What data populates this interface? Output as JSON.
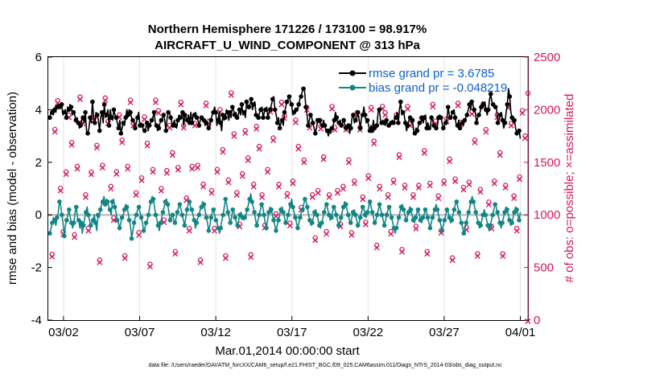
{
  "chart_data": {
    "type": "line",
    "title": "Northern Hemisphere 171226 / 173100 = 98.917%",
    "subtitle": "AIRCRAFT_U_WIND_COMPONENT @ 313 hPa",
    "xlabel": "Mar.01,2014 00:00:00 start",
    "ylabel": "rmse and bias (model - observation)",
    "y2label": "# of obs: o=possible; ×=assimilated",
    "ylim": [
      -4,
      6
    ],
    "y2lim": [
      0,
      2500
    ],
    "xlim": [
      0,
      31.5
    ],
    "x_tick_positions": [
      1,
      6,
      11,
      16,
      21,
      26,
      31
    ],
    "x_tick_labels": [
      "03/02",
      "03/07",
      "03/12",
      "03/17",
      "03/22",
      "03/27",
      "04/01"
    ],
    "y_ticks": [
      -4,
      -2,
      0,
      2,
      4,
      6
    ],
    "y2_ticks": [
      0,
      500,
      1000,
      1500,
      2000,
      2500
    ],
    "grid": "vertical",
    "legend_position": "top-right",
    "series": [
      {
        "name": "rmse grand pr = 3.6785",
        "color": "#000000",
        "values": [
          3.7,
          3.9,
          3.9,
          3.8,
          4.0,
          3.9,
          4.1,
          4.2,
          4.1,
          4.2,
          4.2,
          3.8,
          3.9,
          4.0,
          3.7,
          4.1,
          4.0,
          4.2,
          4.1,
          3.8,
          3.9,
          3.8,
          3.6,
          3.7,
          3.5,
          3.3,
          3.4,
          3.6,
          3.7,
          3.5,
          3.9,
          3.2,
          3.1,
          3.3,
          3.7,
          3.5,
          4.3,
          3.7,
          3.5,
          3.9,
          3.8,
          3.6,
          3.2,
          3.7,
          3.9,
          3.5,
          4.2,
          3.7,
          3.8,
          4.0,
          3.4,
          4.0,
          3.7,
          3.6,
          4.0,
          3.8,
          3.7,
          3.5,
          3.3,
          3.6,
          3.1,
          3.3,
          3.5,
          3.4,
          3.7,
          4.0,
          3.8,
          4.0,
          3.9,
          3.7,
          3.6,
          3.5,
          3.3,
          3.5,
          3.7,
          3.9,
          3.4,
          3.5,
          3.4,
          3.2,
          3.2,
          3.3,
          3.5,
          3.2,
          3.4,
          3.5,
          3.6,
          3.7,
          3.9,
          3.5,
          3.4,
          3.2,
          3.3,
          3.5,
          3.6,
          3.7,
          3.8,
          3.6,
          3.2,
          3.7,
          3.9,
          3.9,
          3.7,
          3.5,
          3.4,
          3.6,
          3.4,
          3.3,
          3.6,
          3.8,
          3.7,
          3.8,
          3.9,
          3.4,
          3.8,
          3.7,
          3.6,
          3.8,
          3.5,
          3.9,
          3.5,
          3.8,
          3.8,
          3.9,
          3.7,
          3.6,
          3.4,
          3.6,
          3.7,
          3.7,
          3.6,
          3.4,
          3.5,
          3.5,
          3.3,
          3.4,
          3.6,
          3.8,
          3.9,
          4.1,
          3.9,
          3.4,
          3.6,
          3.9,
          3.5,
          3.2,
          3.8,
          3.6,
          3.7,
          4.0,
          3.9,
          3.6,
          3.9,
          3.7,
          4.1,
          4.0,
          3.8,
          3.9,
          3.7,
          3.8,
          4.0,
          3.8,
          4.2,
          3.8,
          3.9,
          3.7,
          4.3,
          4.2,
          4.1,
          4.2,
          4.4,
          4.0,
          4.2,
          4.3,
          3.8,
          3.8,
          3.7,
          3.9,
          4.0,
          4.1,
          3.7,
          3.9,
          4.0,
          4.1,
          3.7,
          3.9,
          4.0,
          4.2,
          4.4,
          4.5,
          4.0,
          3.8,
          3.5,
          3.7,
          3.3,
          3.5,
          3.6,
          3.4,
          3.9,
          4.1,
          4.3,
          4.4,
          4.5,
          4.3,
          4.2,
          3.8,
          3.9,
          3.9,
          4.0,
          4.0,
          4.2,
          4.4,
          4.5,
          4.7,
          4.8,
          4.7,
          4.1,
          3.8,
          3.4,
          3.6,
          3.8,
          3.7,
          3.5,
          3.3,
          3.1,
          3.3,
          3.6,
          3.5,
          3.6,
          3.4,
          3.4,
          3.6,
          3.4,
          3.2,
          3.2,
          3.0,
          3.2,
          3.1,
          3.3,
          3.4,
          3.6,
          3.9,
          3.7,
          3.5,
          3.5,
          3.6,
          3.4,
          3.5,
          3.6,
          3.4,
          3.3,
          3.3,
          3.4,
          3.1,
          3.3,
          3.7,
          3.8,
          3.5,
          3.6,
          3.7,
          3.9,
          3.6,
          3.3,
          3.7,
          3.8,
          4.1,
          3.8,
          3.5,
          3.6,
          3.4,
          3.2,
          3.4,
          3.2,
          3.6,
          3.3,
          3.4,
          3.4,
          3.9,
          4.0,
          3.6,
          3.5,
          3.6,
          3.5,
          3.4,
          3.6,
          3.4,
          3.4,
          3.5,
          3.5,
          3.6,
          3.5,
          3.6,
          3.7,
          3.9,
          3.5,
          4.0,
          4.3,
          3.8,
          3.9,
          3.8,
          3.5,
          3.2,
          3.4,
          3.6,
          3.7,
          3.5,
          3.6,
          3.2,
          3.1,
          3.3,
          3.2,
          3.4,
          3.5,
          3.5,
          3.7,
          3.5,
          3.7,
          3.8,
          3.3,
          3.5,
          3.3,
          3.3,
          3.7,
          3.6,
          3.4,
          3.3,
          3.3,
          3.4,
          3.7,
          3.8,
          3.7,
          3.5,
          3.3,
          3.4,
          3.5,
          3.6,
          4.1,
          3.8,
          3.7,
          3.8,
          3.9,
          4.0,
          3.7,
          3.4,
          3.4,
          3.6,
          3.3,
          3.5,
          3.5,
          3.4,
          3.6,
          3.7,
          3.8,
          4.0,
          4.2,
          4.0,
          4.3,
          4.2,
          4.0,
          3.9,
          3.5,
          3.7,
          3.8,
          3.9,
          4.1,
          4.3,
          4.2,
          4.3,
          4.0,
          3.8,
          4.0,
          4.4,
          4.6,
          4.3,
          4.2,
          4.1,
          4.1,
          4.0,
          3.5,
          3.6,
          3.8,
          3.9,
          3.6,
          3.3,
          3.5,
          3.9,
          4.2,
          4.8,
          4.5,
          3.9,
          3.7,
          3.5,
          3.6,
          3.3,
          3.1,
          3.2,
          3.2,
          2.9
        ]
      },
      {
        "name": "bias grand pr = -0.048219",
        "color": "#138585",
        "values": [
          -0.7,
          -0.5,
          -0.3,
          -0.1,
          -0.2,
          -0.4,
          -0.1,
          0.1,
          0.5,
          0.4,
          0.0,
          -0.3,
          -0.8,
          -0.4,
          -0.2,
          0.0,
          0.2,
          -0.1,
          -0.3,
          -0.5,
          -0.3,
          0.1,
          0.3,
          -0.1,
          -0.2,
          -0.5,
          -0.3,
          -0.7,
          -0.4,
          -0.1,
          0.1,
          0.3,
          0.0,
          -0.2,
          -0.4,
          -0.3,
          -0.2,
          0.0,
          -0.3,
          -0.6,
          0.0,
          -0.1,
          0.2,
          0.4,
          0.5,
          0.7,
          0.4,
          0.6,
          0.5,
          0.3,
          0.2,
          0.0,
          0.5,
          0.6,
          0.3,
          0.1,
          -0.2,
          -0.3,
          -0.5,
          -0.3,
          -0.1,
          0.0,
          0.2,
          0.4,
          0.3,
          0.1,
          -0.2,
          -0.4,
          -0.9,
          -0.6,
          -0.3,
          -0.1,
          0.0,
          0.2,
          0.3,
          0.1,
          -0.1,
          -0.3,
          -0.6,
          -0.5,
          -0.3,
          -0.2,
          0.0,
          0.3,
          0.5,
          0.7,
          0.6,
          0.3,
          0.0,
          -0.2,
          -0.4,
          -0.6,
          -0.3,
          -0.1,
          0.1,
          0.3,
          0.5,
          0.6,
          0.4,
          0.1,
          -0.2,
          -0.1,
          0.0,
          -0.2,
          -0.3,
          -0.1,
          0.1,
          0.3,
          0.4,
          0.2,
          0.0,
          -0.2,
          -0.4,
          -0.1,
          0.2,
          0.4,
          0.5,
          0.3,
          0.2,
          0.0,
          -0.2,
          -0.5,
          -0.3,
          -0.1,
          0.0,
          0.2,
          0.3,
          0.5,
          0.4,
          0.2,
          -0.1,
          -0.3,
          -0.6,
          -0.4,
          -0.1,
          0.1,
          0.2,
          0.0,
          -0.2,
          -0.3,
          -0.5,
          -0.7,
          -0.5,
          -0.2,
          0.0,
          0.3,
          0.6,
          0.4,
          0.1,
          -0.1,
          -0.3,
          -0.1,
          0.2,
          0.1,
          -0.1,
          -0.3,
          -0.4,
          -0.2,
          0.0,
          0.1,
          -0.1,
          -0.2,
          -0.1,
          0.0,
          0.2,
          0.4,
          0.6,
          0.8,
          0.5,
          0.3,
          0.1,
          -0.2,
          -0.4,
          -0.2,
          0.0,
          0.2,
          0.4,
          0.3,
          0.0,
          -0.3,
          -0.5,
          -0.2,
          0.1,
          0.3,
          0.2,
          0.0,
          -0.2,
          -0.4,
          -0.6,
          -0.4,
          -0.2,
          0.0,
          0.2,
          0.3,
          0.1,
          -0.1,
          -0.3,
          -0.2,
          0.0,
          0.2,
          0.4,
          0.6,
          0.3,
          0.1,
          -0.1,
          -0.3,
          -0.5,
          -0.3,
          -0.1,
          0.1,
          0.2,
          0.4,
          0.6,
          0.5,
          0.3,
          0.0,
          -0.2,
          -0.4,
          -0.3,
          -0.1,
          0.1,
          0.2,
          0.0,
          -0.2,
          -0.4,
          -0.5,
          -0.3,
          -0.1,
          0.1,
          0.3,
          0.4,
          0.2,
          0.0,
          -0.2,
          -0.1,
          0.1,
          0.3,
          0.2,
          0.0,
          -0.2,
          -0.4,
          -0.3,
          -0.1,
          0.1,
          0.3,
          0.5,
          0.4,
          0.2,
          0.0,
          -0.2,
          -0.3,
          -0.1,
          0.1,
          0.2,
          0.0,
          -0.2,
          -0.4,
          -0.3,
          -0.1,
          0.1,
          0.3,
          0.2,
          0.0,
          -0.1,
          0.1,
          0.3,
          0.5,
          0.3,
          0.1,
          -0.1,
          -0.3,
          -0.2,
          0.0,
          0.2,
          0.4,
          0.2,
          0.0,
          -0.2,
          -0.4,
          -0.2,
          0.0,
          0.2,
          0.3,
          0.1,
          -0.1,
          -0.3,
          -0.5,
          -0.7,
          -0.5,
          -0.3,
          -0.1,
          0.1,
          0.3,
          0.4,
          0.2,
          0.0,
          -0.2,
          -0.1,
          0.1,
          0.3,
          0.2,
          0.0,
          -0.2,
          -0.3,
          -0.1,
          0.1,
          0.2,
          0.0,
          -0.2,
          -0.3,
          -0.1,
          0.0,
          0.2,
          0.1,
          -0.1,
          -0.3,
          -0.5,
          -0.3,
          -0.1,
          0.1,
          0.2,
          0.4,
          0.2,
          0.0,
          -0.2,
          -0.4,
          -0.6,
          -0.4,
          -0.2,
          0.0,
          0.2,
          0.1,
          -0.1,
          -0.3,
          -0.2,
          0.0,
          0.2,
          0.4,
          0.5,
          0.3,
          0.1,
          -0.1,
          -0.3,
          -0.5,
          -0.7,
          -0.5,
          -0.3,
          -0.1,
          0.1,
          0.3,
          0.5,
          0.7,
          0.5,
          0.3,
          0.1,
          -0.1,
          -0.3,
          -0.5,
          -0.4,
          -0.2,
          0.0,
          0.2,
          0.0,
          -0.2,
          -0.4,
          -0.6,
          -0.4,
          -0.2,
          0.0,
          0.2,
          0.4,
          0.3,
          0.1,
          -0.1,
          -0.3,
          -0.5,
          -0.3,
          -0.1,
          0.1,
          0.3,
          0.2,
          0.0,
          -0.2,
          -0.4,
          -0.3,
          -0.1,
          0.1,
          0.3,
          0.2,
          0.0,
          -0.2,
          0.1
        ]
      },
      {
        "name": "possible obs",
        "color": "#d6185a",
        "axis": "right",
        "marker": "o",
        "values": [
          614,
          1801,
          2075,
          1242,
          828,
          1398,
          1937,
          1677,
          800,
          1450,
          2110,
          1880,
          1180,
          860,
          1396,
          1910,
          1650,
          560,
          1460,
          2100,
          1880,
          1260,
          960,
          1400,
          1940,
          1700,
          600,
          1450,
          2080,
          1860,
          1200,
          820,
          1340,
          1920,
          1670,
          520,
          1420,
          2080,
          1980,
          1240,
          940,
          1410,
          1840,
          1580,
          640,
          1440,
          2060,
          1840,
          1150,
          860,
          1450,
          1860,
          1460,
          560,
          1280,
          2050,
          1880,
          1220,
          860,
          1420,
          1990,
          1610,
          600,
          1320,
          2150,
          1760,
          1200,
          900,
          1380,
          1790,
          1530,
          610,
          1280,
          1830,
          1640,
          1180,
          890,
          1420,
          1990,
          1720,
          1000,
          1280,
          2060,
          1930,
          1190,
          910,
          1310,
          1890,
          1640,
          1060,
          1510,
          2010,
          1840,
          1180,
          770,
          1220,
          1830,
          1540,
          830,
          1180,
          2020,
          1820,
          1220,
          900,
          1260,
          1820,
          1510,
          820,
          1310,
          1960,
          1820,
          1160,
          920,
          1360,
          2010,
          1690,
          700,
          1260,
          2020,
          1960,
          1180,
          830,
          1320,
          1940,
          1560,
          660,
          1270,
          2020,
          1860,
          1180,
          880,
          1270,
          1910,
          1600,
          640,
          1290,
          2040,
          1880,
          1170,
          840,
          1310,
          1900,
          1520,
          580,
          1330,
          2050,
          1870,
          1250,
          870,
          1300,
          1970,
          1700,
          620,
          1230,
          2040,
          1800,
          1110,
          880,
          1310,
          1940,
          1580,
          620,
          1270,
          2030,
          1860,
          1170,
          860,
          1350,
          1980,
          1740,
          2145
        ]
      },
      {
        "name": "assimilated obs",
        "color": "#d6185a",
        "axis": "right",
        "marker": "x",
        "values": [
          614,
          1801,
          2075,
          1242,
          828,
          1398,
          1937,
          1677,
          800,
          1450,
          2110,
          1880,
          1180,
          860,
          1396,
          1910,
          1650,
          560,
          1460,
          2100,
          1880,
          1260,
          960,
          1400,
          1940,
          1700,
          600,
          1450,
          2080,
          1860,
          1200,
          820,
          1340,
          1920,
          1670,
          520,
          1420,
          2080,
          1980,
          1240,
          940,
          1410,
          1840,
          1580,
          640,
          1440,
          2060,
          1840,
          1150,
          860,
          1450,
          1860,
          1460,
          560,
          1280,
          2050,
          1880,
          1220,
          860,
          1420,
          1990,
          1610,
          600,
          1320,
          2150,
          1760,
          1200,
          900,
          1380,
          1790,
          1530,
          610,
          1280,
          1830,
          1640,
          1180,
          890,
          1420,
          1990,
          1720,
          1000,
          1280,
          2060,
          1930,
          1190,
          910,
          1310,
          1890,
          1640,
          1060,
          1510,
          2010,
          1840,
          1180,
          770,
          1220,
          1830,
          1540,
          830,
          1180,
          2020,
          1820,
          1220,
          900,
          1260,
          1820,
          1510,
          820,
          1310,
          1960,
          1820,
          1160,
          920,
          1360,
          2010,
          1690,
          700,
          1260,
          2020,
          1960,
          1180,
          830,
          1320,
          1940,
          1560,
          660,
          1270,
          2020,
          1860,
          1180,
          880,
          1270,
          1910,
          1600,
          640,
          1290,
          2040,
          1880,
          1170,
          840,
          1310,
          1900,
          1520,
          580,
          1330,
          2050,
          1870,
          1250,
          870,
          1300,
          1970,
          1700,
          620,
          1230,
          2040,
          1800,
          1110,
          880,
          1310,
          1940,
          1580,
          620,
          1270,
          2030,
          1860,
          1170,
          860,
          1350,
          1980,
          1740,
          0
        ]
      }
    ],
    "footer": "data file: /Users/raeder/DAI/ATM_forcXX/CAM6_setup/f.e21.FHIST_BGC.f09_025.CAM6assim.011/Diags_NTrS_2014-03/obs_diag_output.nc"
  }
}
